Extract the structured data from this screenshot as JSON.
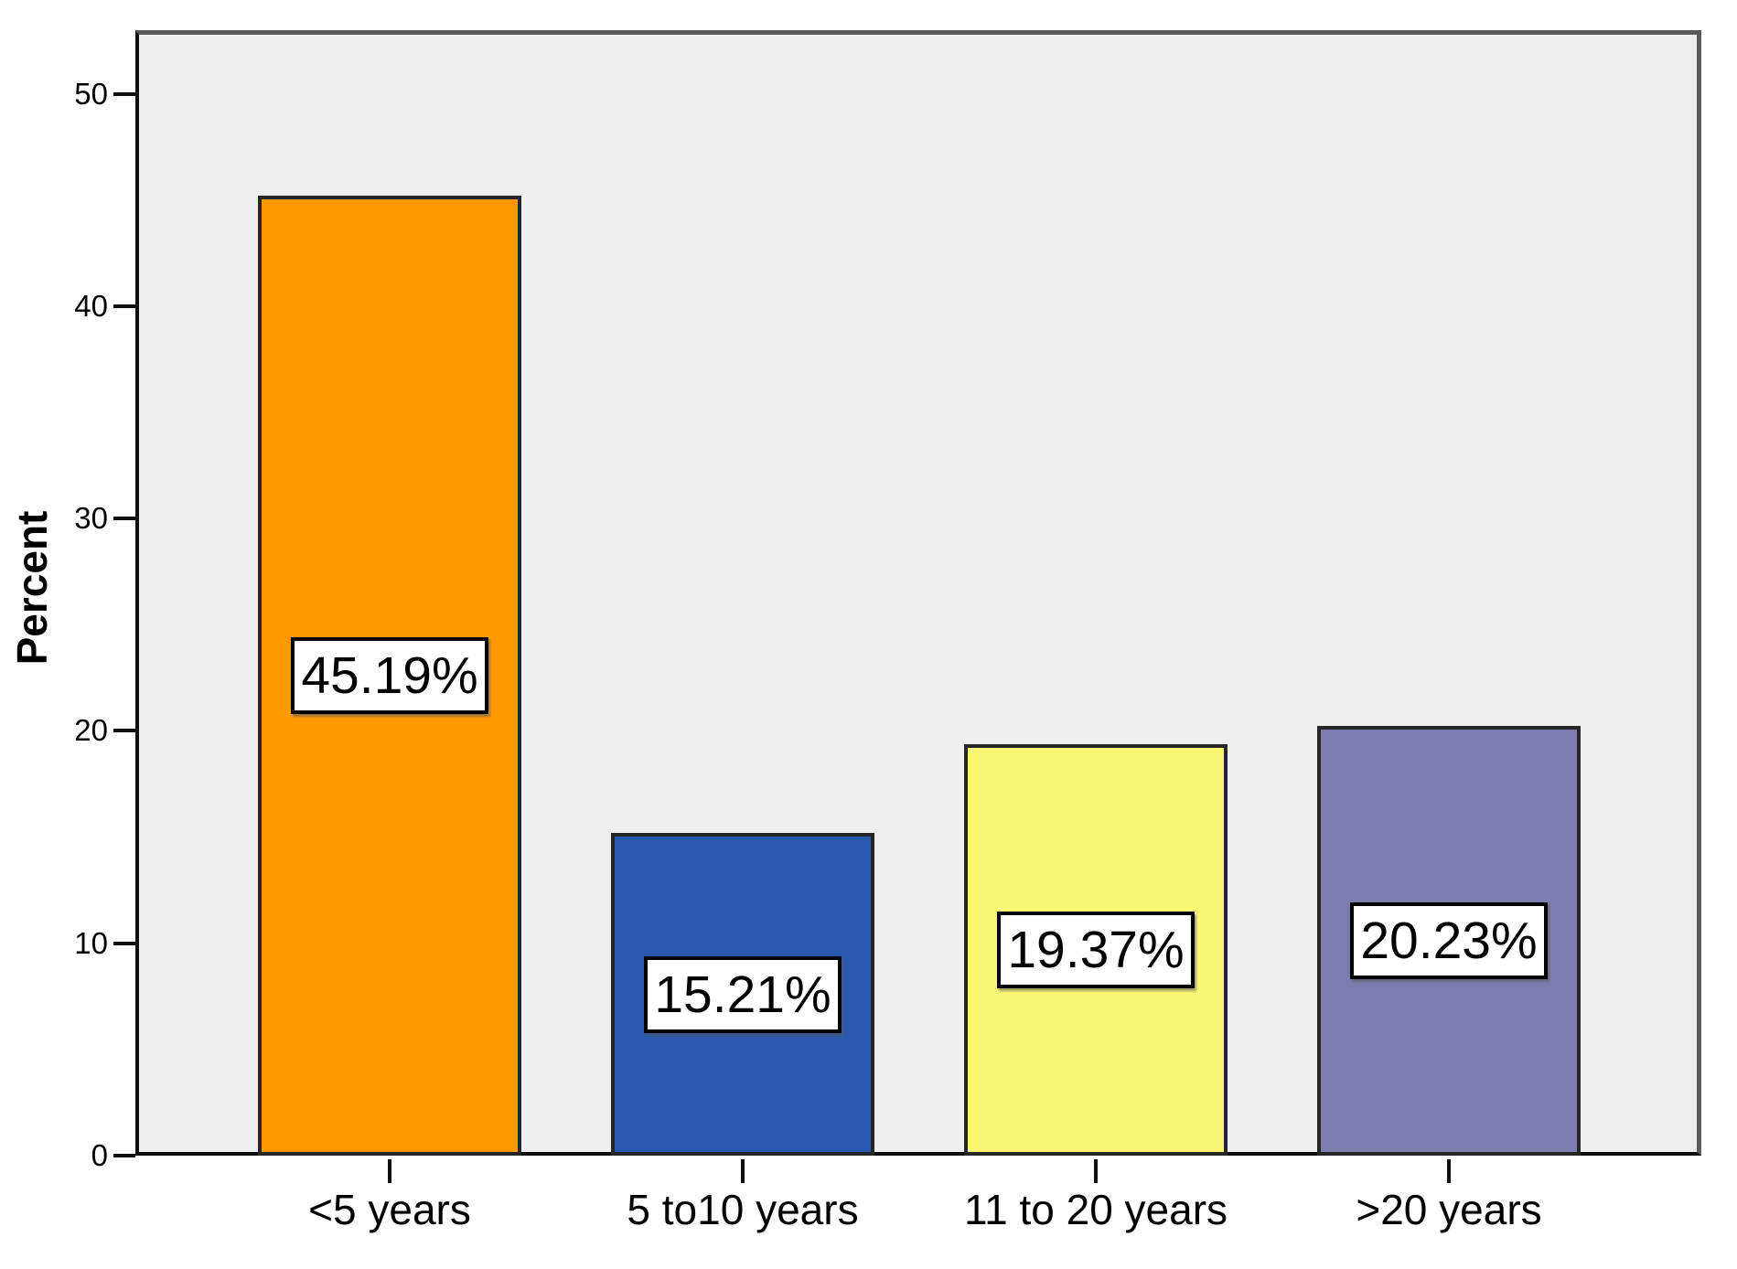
{
  "figure": {
    "background": "#ffffff",
    "plot_background": "#efefef",
    "frame_color": "#5a5a5a",
    "axis_color": "#0f0f0f"
  },
  "chart_data": {
    "type": "bar",
    "title": "",
    "categories": [
      "<5 years",
      "5 to10 years",
      "11 to 20 years",
      ">20 years"
    ],
    "values": [
      45.19,
      15.21,
      19.37,
      20.23
    ],
    "value_labels": [
      "45.19%",
      "15.21%",
      "19.37%",
      "20.23%"
    ],
    "bar_colors": [
      "#ff9900",
      "#2b58af",
      "#faf774",
      "#7c7cae"
    ],
    "bar_border_color": "#262626",
    "xlabel": "",
    "ylabel": "Percent",
    "ylim": [
      0,
      53
    ],
    "yticks": [
      0,
      10,
      20,
      30,
      40,
      50
    ],
    "grid": false,
    "legend": "none",
    "value_label_style": "white box, black border, centered inside bar"
  }
}
